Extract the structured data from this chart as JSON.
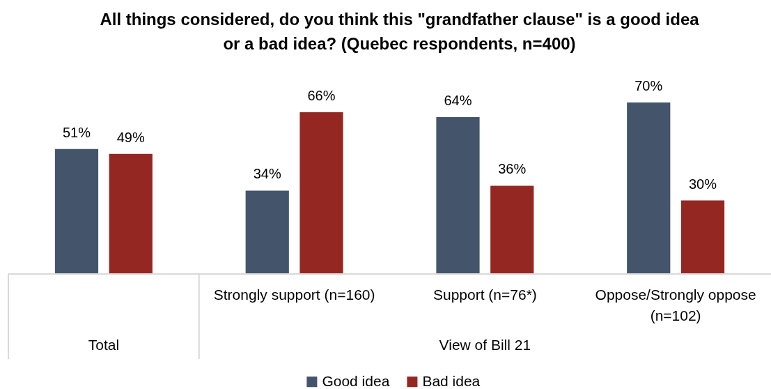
{
  "chart_data": {
    "type": "bar",
    "title": "All things considered, do you think this \"grandfather clause\" is a good idea or a bad idea? (Quebec respondents, n=400)",
    "categories": [
      null,
      "Strongly support (n=160)",
      "Support (n=76*)",
      "Oppose/Strongly oppose (n=102)"
    ],
    "series": [
      {
        "name": "Good idea",
        "color": "#44546a",
        "values": [
          51,
          34,
          64,
          70
        ],
        "value_labels": [
          "51%",
          "34%",
          "64%",
          "70%"
        ]
      },
      {
        "name": "Bad idea",
        "color": "#952722",
        "values": [
          49,
          66,
          36,
          30
        ],
        "value_labels": [
          "49%",
          "66%",
          "36%",
          "30%"
        ]
      }
    ],
    "annotations": [
      "Total",
      "View of Bill 21"
    ],
    "legend": "bottom",
    "tick_labels": "x"
  }
}
